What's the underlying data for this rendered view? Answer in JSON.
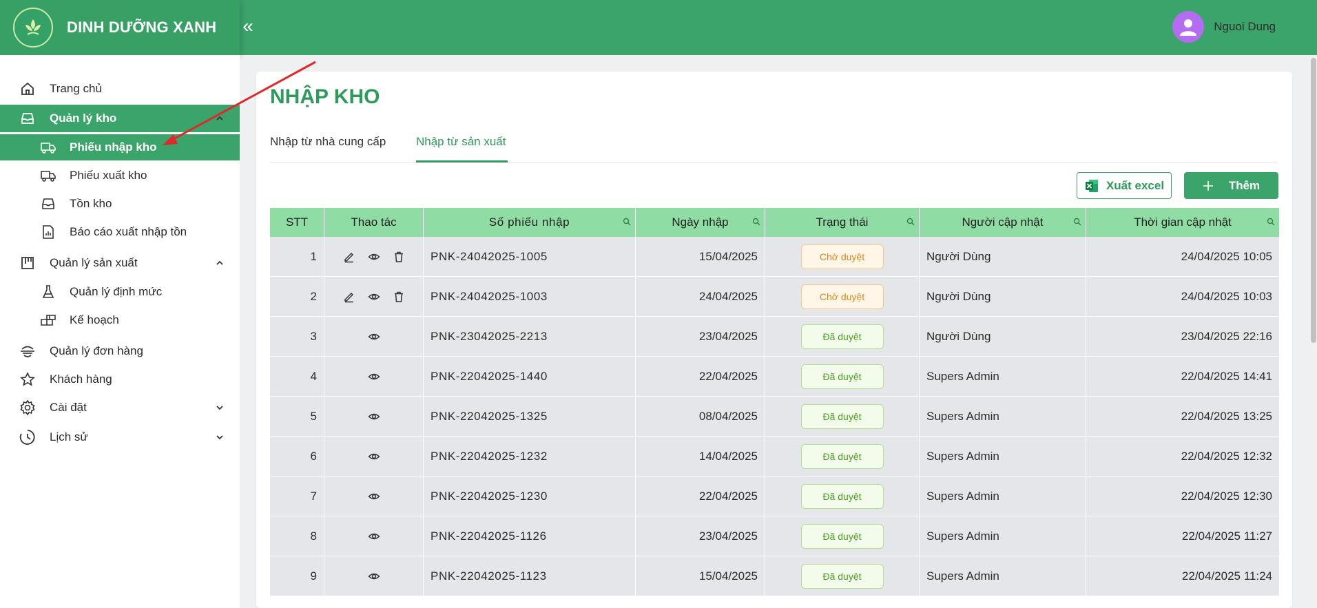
{
  "app": {
    "brand_name": "DINH DƯỠNG XANH",
    "collapse_icon": "«"
  },
  "user": {
    "name": "Nguoi Dung"
  },
  "sidebar": {
    "items": [
      {
        "label": "Trang chủ",
        "icon": "home-icon"
      },
      {
        "label": "Quản lý kho",
        "icon": "inbox-icon",
        "active": true
      },
      {
        "label": "Phiếu nhập kho",
        "icon": "truck-icon",
        "active": true
      },
      {
        "label": "Phiếu xuất kho",
        "icon": "truck-icon"
      },
      {
        "label": "Tồn kho",
        "icon": "inbox-icon"
      },
      {
        "label": "Báo cáo xuất nhập tồn",
        "icon": "report-icon"
      },
      {
        "label": "Quản lý sản xuất",
        "icon": "factory-icon"
      },
      {
        "label": "Quản lý định mức",
        "icon": "flask-icon"
      },
      {
        "label": "Kế hoạch",
        "icon": "blocks-icon"
      },
      {
        "label": "Quản lý đơn hàng",
        "icon": "order-icon"
      },
      {
        "label": "Khách hàng",
        "icon": "star-icon"
      },
      {
        "label": "Cài đặt",
        "icon": "gear-icon"
      },
      {
        "label": "Lịch sử",
        "icon": "clock-icon"
      }
    ]
  },
  "page": {
    "title": "NHẬP KHO",
    "tabs": [
      {
        "label": "Nhập từ nhà cung cấp"
      },
      {
        "label": "Nhập từ sản xuất",
        "active": true
      }
    ],
    "export_label": "Xuất excel",
    "add_label": "Thêm"
  },
  "table": {
    "columns": [
      "STT",
      "Thao tác",
      "Số phiếu nhập",
      "Ngày nhập",
      "Trạng thái",
      "Người cập nhật",
      "Thời gian cập nhật"
    ],
    "rows": [
      {
        "stt": "1",
        "actions": [
          "edit",
          "view",
          "delete"
        ],
        "code": "PNK-24042025-1005",
        "date": "15/04/2025",
        "status": "Chờ duyệt",
        "status_type": "pending",
        "user": "Người Dùng",
        "time": "24/04/2025 10:05"
      },
      {
        "stt": "2",
        "actions": [
          "edit",
          "view",
          "delete"
        ],
        "code": "PNK-24042025-1003",
        "date": "24/04/2025",
        "status": "Chờ duyệt",
        "status_type": "pending",
        "user": "Người Dùng",
        "time": "24/04/2025 10:03"
      },
      {
        "stt": "3",
        "actions": [
          "view"
        ],
        "code": "PNK-23042025-2213",
        "date": "23/04/2025",
        "status": "Đã duyệt",
        "status_type": "approved",
        "user": "Người Dùng",
        "time": "23/04/2025 22:16"
      },
      {
        "stt": "4",
        "actions": [
          "view"
        ],
        "code": "PNK-22042025-1440",
        "date": "22/04/2025",
        "status": "Đã duyệt",
        "status_type": "approved",
        "user": "Supers Admin",
        "time": "22/04/2025 14:41"
      },
      {
        "stt": "5",
        "actions": [
          "view"
        ],
        "code": "PNK-22042025-1325",
        "date": "08/04/2025",
        "status": "Đã duyệt",
        "status_type": "approved",
        "user": "Supers Admin",
        "time": "22/04/2025 13:25"
      },
      {
        "stt": "6",
        "actions": [
          "view"
        ],
        "code": "PNK-22042025-1232",
        "date": "14/04/2025",
        "status": "Đã duyệt",
        "status_type": "approved",
        "user": "Supers Admin",
        "time": "22/04/2025 12:32"
      },
      {
        "stt": "7",
        "actions": [
          "view"
        ],
        "code": "PNK-22042025-1230",
        "date": "22/04/2025",
        "status": "Đã duyệt",
        "status_type": "approved",
        "user": "Supers Admin",
        "time": "22/04/2025 12:30"
      },
      {
        "stt": "8",
        "actions": [
          "view"
        ],
        "code": "PNK-22042025-1126",
        "date": "23/04/2025",
        "status": "Đã duyệt",
        "status_type": "approved",
        "user": "Supers Admin",
        "time": "22/04/2025 11:27"
      },
      {
        "stt": "9",
        "actions": [
          "view"
        ],
        "code": "PNK-22042025-1123",
        "date": "15/04/2025",
        "status": "Đã duyệt",
        "status_type": "approved",
        "user": "Supers Admin",
        "time": "22/04/2025 11:24"
      }
    ]
  },
  "colors": {
    "primary": "#3aa46a",
    "header_green": "#8fdca5",
    "pending": "#d9861d",
    "approved": "#4a9d21",
    "annotation_arrow": "#e0282a"
  }
}
